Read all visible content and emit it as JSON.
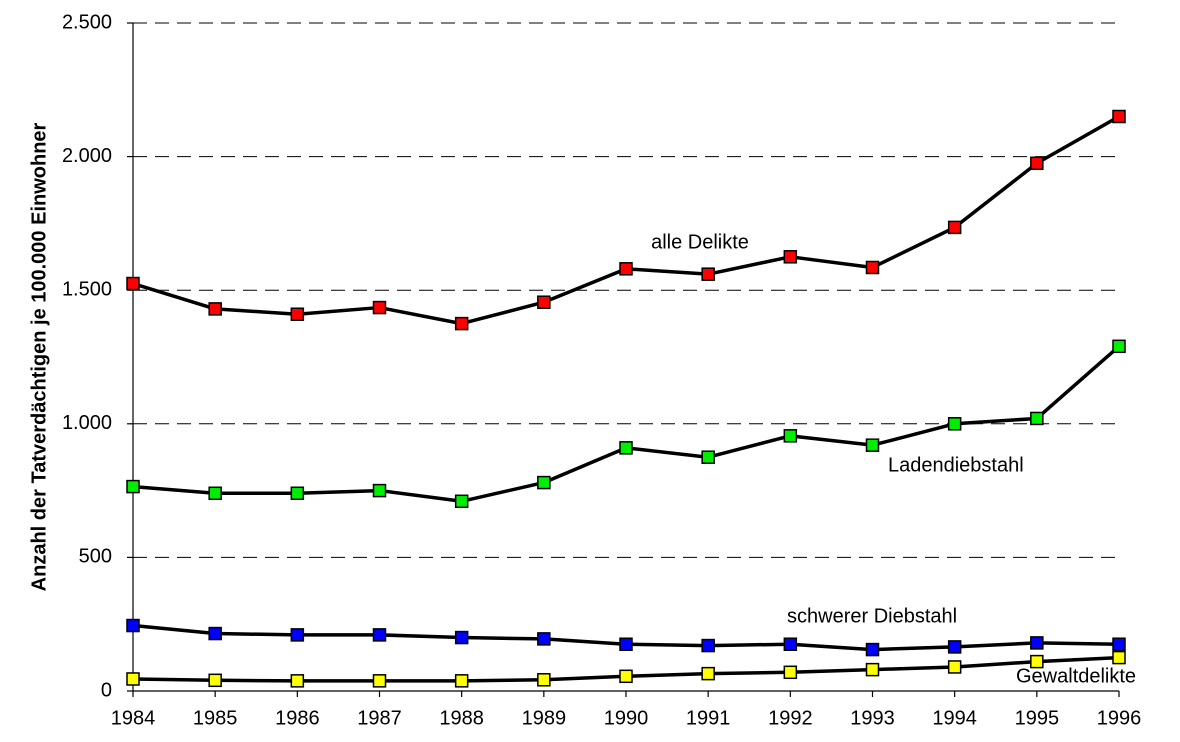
{
  "chart_data": {
    "type": "line",
    "y_axis_label": "Anzahl der Tatverdächtigen je 100.000 Einwohner",
    "categories": [
      "1984",
      "1985",
      "1986",
      "1987",
      "1988",
      "1989",
      "1990",
      "1991",
      "1992",
      "1993",
      "1994",
      "1995",
      "1996"
    ],
    "series": [
      {
        "name": "alle Delikte",
        "color": "#ff0000",
        "values": [
          1525,
          1430,
          1410,
          1435,
          1375,
          1455,
          1580,
          1560,
          1625,
          1585,
          1735,
          1975,
          2150
        ]
      },
      {
        "name": "Ladendiebstahl",
        "color": "#00ee00",
        "values": [
          765,
          740,
          740,
          750,
          710,
          780,
          910,
          875,
          955,
          920,
          1000,
          1020,
          1290
        ]
      },
      {
        "name": "schwerer Diebstahl",
        "color": "#0000ff",
        "values": [
          245,
          215,
          210,
          210,
          200,
          195,
          175,
          170,
          175,
          155,
          165,
          180,
          175
        ]
      },
      {
        "name": "Gewaltdelikte",
        "color": "#ffff00",
        "values": [
          45,
          40,
          38,
          38,
          38,
          42,
          55,
          65,
          70,
          80,
          90,
          110,
          125
        ]
      }
    ],
    "ylim": [
      0,
      2500
    ],
    "yticks": [
      0,
      500,
      {
        "value": 1000,
        "label": "1.000"
      },
      {
        "value": 1500,
        "label": "1.500"
      },
      {
        "value": 2000,
        "label": "2.000"
      },
      {
        "value": 2500,
        "label": "2.500"
      }
    ],
    "grid": true
  }
}
